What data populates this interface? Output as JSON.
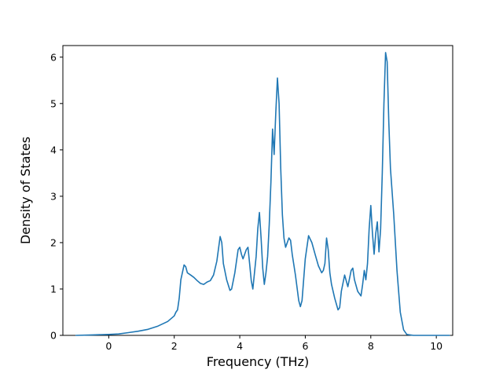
{
  "chart_data": {
    "type": "line",
    "title": "",
    "xlabel": "Frequency (THz)",
    "ylabel": "Density of States",
    "xlim": [
      -1.4,
      10.5
    ],
    "ylim": [
      0,
      6.25
    ],
    "xticks": [
      0,
      2,
      4,
      6,
      8,
      10
    ],
    "yticks": [
      0,
      1,
      2,
      3,
      4,
      5,
      6
    ],
    "grid": false,
    "legend": "none",
    "line_color": "#1f77b4",
    "x": [
      -1.0,
      -0.5,
      0.0,
      0.3,
      0.6,
      0.9,
      1.2,
      1.5,
      1.8,
      2.0,
      2.05,
      2.1,
      2.15,
      2.2,
      2.3,
      2.35,
      2.4,
      2.5,
      2.6,
      2.7,
      2.8,
      2.9,
      3.0,
      3.1,
      3.2,
      3.3,
      3.4,
      3.45,
      3.5,
      3.6,
      3.7,
      3.75,
      3.85,
      3.95,
      4.0,
      4.05,
      4.1,
      4.2,
      4.25,
      4.3,
      4.35,
      4.4,
      4.5,
      4.55,
      4.6,
      4.65,
      4.7,
      4.75,
      4.8,
      4.85,
      4.9,
      4.95,
      5.0,
      5.05,
      5.1,
      5.15,
      5.2,
      5.25,
      5.3,
      5.35,
      5.4,
      5.5,
      5.55,
      5.6,
      5.7,
      5.8,
      5.85,
      5.9,
      6.0,
      6.1,
      6.2,
      6.3,
      6.4,
      6.5,
      6.55,
      6.6,
      6.65,
      6.7,
      6.75,
      6.8,
      6.9,
      7.0,
      7.05,
      7.1,
      7.2,
      7.3,
      7.4,
      7.45,
      7.5,
      7.6,
      7.7,
      7.75,
      7.8,
      7.85,
      7.9,
      7.95,
      8.0,
      8.05,
      8.1,
      8.15,
      8.2,
      8.25,
      8.3,
      8.35,
      8.4,
      8.45,
      8.5,
      8.55,
      8.6,
      8.7,
      8.8,
      8.9,
      9.0,
      9.1,
      9.3,
      9.6,
      10.0,
      10.4
    ],
    "y": [
      0,
      0.01,
      0.02,
      0.03,
      0.06,
      0.09,
      0.13,
      0.2,
      0.3,
      0.42,
      0.5,
      0.55,
      0.8,
      1.2,
      1.52,
      1.48,
      1.35,
      1.3,
      1.25,
      1.18,
      1.12,
      1.1,
      1.15,
      1.18,
      1.3,
      1.6,
      2.13,
      2.0,
      1.55,
      1.2,
      0.97,
      1.0,
      1.35,
      1.85,
      1.9,
      1.75,
      1.65,
      1.85,
      1.9,
      1.55,
      1.18,
      1.0,
      1.7,
      2.3,
      2.65,
      2.1,
      1.45,
      1.1,
      1.35,
      1.7,
      2.4,
      3.3,
      4.45,
      3.9,
      4.8,
      5.55,
      5.0,
      3.6,
      2.6,
      2.1,
      1.9,
      2.1,
      2.05,
      1.75,
      1.3,
      0.75,
      0.62,
      0.75,
      1.65,
      2.15,
      2.0,
      1.75,
      1.5,
      1.35,
      1.4,
      1.55,
      2.1,
      1.85,
      1.35,
      1.1,
      0.8,
      0.55,
      0.6,
      0.95,
      1.3,
      1.05,
      1.4,
      1.45,
      1.2,
      0.95,
      0.85,
      1.1,
      1.4,
      1.2,
      1.55,
      2.3,
      2.8,
      2.2,
      1.75,
      2.2,
      2.45,
      1.8,
      2.3,
      3.5,
      5.0,
      6.1,
      5.9,
      4.6,
      3.6,
      2.6,
      1.4,
      0.5,
      0.12,
      0.02,
      0.0,
      0.0,
      0.0,
      0.0
    ]
  }
}
